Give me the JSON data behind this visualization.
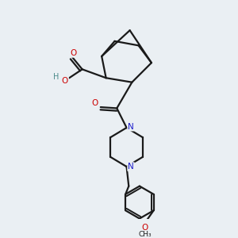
{
  "background_color": "#eaeff3",
  "bond_color": "#1a1a1a",
  "O_color": "#cc0000",
  "N_color": "#1a1acc",
  "C_color": "#1a1a1a",
  "H_color": "#4a8a8a",
  "line_width": 1.6,
  "figsize": [
    3.0,
    3.0
  ],
  "dpi": 100,
  "xlim": [
    0,
    10
  ],
  "ylim": [
    0,
    10
  ]
}
